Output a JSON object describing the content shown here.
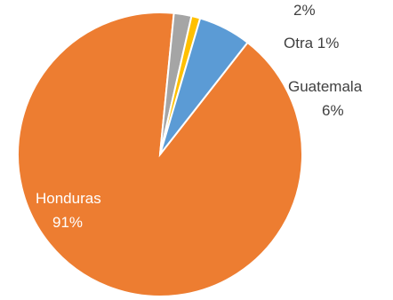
{
  "chart_data": {
    "type": "pie",
    "series": [
      {
        "labels": [
          "Honduras",
          "Guatemala",
          "Otra",
          ""
        ],
        "values": [
          91,
          6,
          1,
          2
        ],
        "value_labels": [
          "91%",
          "6%",
          "1%",
          "2%"
        ],
        "colors": [
          "#ed7d31",
          "#5b9bd5",
          "#ffc000",
          "#a5a5a5"
        ]
      }
    ],
    "label_colors": {
      "inside": "#ffffff",
      "outside": "#404040"
    }
  }
}
